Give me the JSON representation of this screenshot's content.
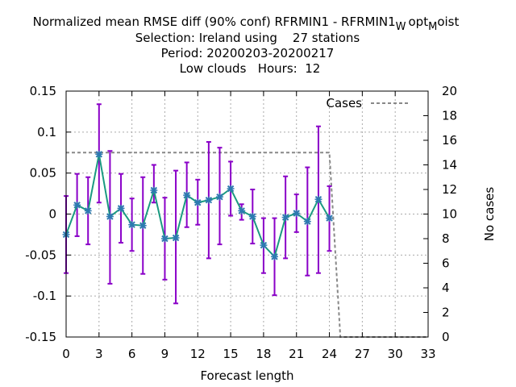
{
  "title": {
    "line1_main": "Normalized mean RMSE diff (90% conf) RFRMIN1 - RFRMIN1",
    "line1_sub1": "W",
    "line1_mid": "opt",
    "line1_sub2": "M",
    "line1_end": "oist",
    "line2": "Selection: Ireland using    27 stations",
    "line3": "Period: 20200203-20200217",
    "line4": "Low clouds   Hours:  12"
  },
  "chart_data": {
    "type": "line",
    "xlabel": "Forecast length",
    "ylabel_right": "No cases",
    "xlim": [
      0,
      33
    ],
    "ylim": [
      -0.15,
      0.15
    ],
    "y2lim": [
      0,
      20
    ],
    "x_ticks": [
      "0",
      "3",
      "6",
      "9",
      "12",
      "15",
      "18",
      "21",
      "24",
      "27",
      "30",
      "33"
    ],
    "y_ticks": [
      "-0.15",
      "-0.1",
      "-0.05",
      "0",
      "0.05",
      "0.1",
      "0.15"
    ],
    "y2_ticks": [
      "0",
      "2",
      "4",
      "6",
      "8",
      "10",
      "12",
      "14",
      "16",
      "18",
      "20"
    ],
    "grid": true,
    "legend": {
      "position": "top-right",
      "entries": [
        "Cases"
      ]
    },
    "colors": {
      "rmse_line": "#1a9a80",
      "marker": "#2d7ab0",
      "errorbar": "#8a00c8",
      "cases": "#888888",
      "grid": "#aaaaaa"
    },
    "series": [
      {
        "x": [
          0,
          1,
          2,
          3,
          4,
          5,
          6,
          7,
          8,
          9,
          10,
          11,
          12,
          13,
          14,
          15,
          16,
          17,
          18,
          19,
          20,
          21,
          22,
          23,
          24
        ],
        "values": [
          -0.025,
          0.011,
          0.004,
          0.073,
          -0.003,
          0.007,
          -0.013,
          -0.014,
          0.029,
          -0.03,
          -0.029,
          0.023,
          0.014,
          0.017,
          0.021,
          0.031,
          0.004,
          -0.003,
          -0.038,
          -0.052,
          -0.004,
          0.001,
          -0.009,
          0.018,
          -0.005
        ],
        "lower": [
          -0.072,
          -0.027,
          -0.037,
          0.014,
          -0.085,
          -0.035,
          -0.045,
          -0.073,
          0.014,
          -0.08,
          -0.109,
          -0.016,
          -0.013,
          -0.054,
          -0.037,
          -0.002,
          -0.007,
          -0.036,
          -0.072,
          -0.099,
          -0.054,
          -0.022,
          -0.075,
          -0.072,
          -0.045
        ],
        "upper": [
          0.022,
          0.049,
          0.045,
          0.134,
          0.077,
          0.049,
          0.019,
          0.045,
          0.06,
          0.02,
          0.053,
          0.063,
          0.042,
          0.088,
          0.081,
          0.064,
          0.012,
          0.03,
          -0.005,
          -0.005,
          0.046,
          0.024,
          0.057,
          0.107,
          0.034
        ]
      },
      {
        "name": "Cases",
        "x": [
          0,
          24,
          25,
          33
        ],
        "values": [
          15,
          15,
          0,
          0
        ]
      }
    ]
  }
}
